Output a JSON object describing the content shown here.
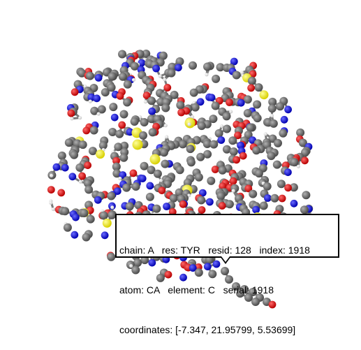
{
  "viewer": {
    "colors": {
      "carbon": "#6e6e6e",
      "oxygen": "#e00000",
      "nitrogen": "#0000e6",
      "sulfur": "#f5f000",
      "hydrogen": "#f2f2f2",
      "bond": "#7a7a7a",
      "background": "#ffffff"
    }
  },
  "tooltip": {
    "line1": "chain: A   res: TYR   resid: 128   index: 1918",
    "line2": "atom: CA   element: C   serial: 1918",
    "line3": "coordinates: [-7.347, 21.95799, 5.53699]"
  }
}
